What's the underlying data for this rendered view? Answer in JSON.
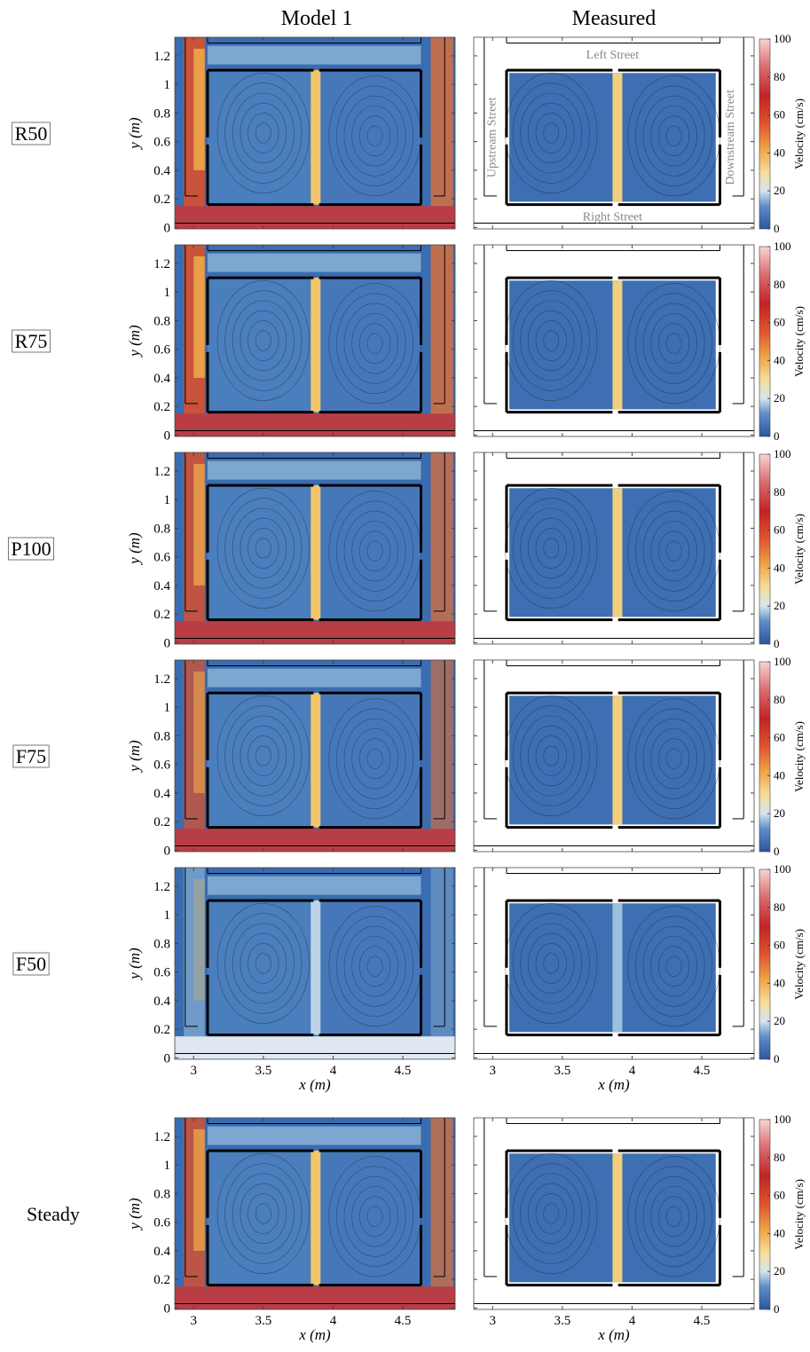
{
  "figure": {
    "columns": [
      "Model 1",
      "Measured"
    ],
    "rows": [
      "R50",
      "R75",
      "P100",
      "F75",
      "F50",
      "Steady"
    ],
    "x_axis": {
      "label": "x (m)",
      "lim": [
        2.865,
        4.875
      ],
      "ticks": [
        3,
        3.5,
        4,
        4.5
      ]
    },
    "y_axis": {
      "label": "y (m)",
      "lim": [
        -0.01,
        1.33
      ],
      "ticks": [
        0,
        0.2,
        0.4,
        0.6,
        0.8,
        1,
        1.2
      ]
    },
    "colorbar": {
      "label": "Velocity (cm/s)",
      "lim": [
        0,
        100
      ],
      "ticks": [
        0,
        20,
        40,
        60,
        80,
        100
      ]
    },
    "annotations": {
      "top": "Left Street",
      "bottom": "Right Street",
      "left": "Upstream Street",
      "right": "Downstream Street"
    }
  }
}
